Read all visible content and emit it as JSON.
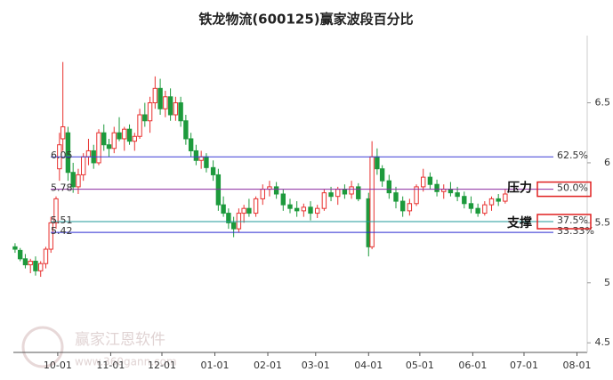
{
  "chart_data": {
    "type": "candlestick",
    "title": "铁龙物流(600125)赢家波段百分比",
    "x": [
      5,
      8,
      11,
      14,
      17,
      20,
      23,
      26,
      29,
      31,
      33,
      36,
      39,
      42,
      45,
      48,
      51,
      54,
      57,
      60,
      63,
      66,
      69,
      72,
      75,
      78,
      81,
      84,
      87,
      90,
      93,
      96,
      99,
      102,
      105,
      108,
      111,
      114,
      117,
      121,
      124,
      127,
      130,
      133,
      136,
      139,
      142,
      146,
      150,
      154,
      158,
      162,
      166,
      170,
      174,
      178,
      182,
      186,
      190,
      194,
      198,
      202,
      206,
      212,
      214,
      217,
      220,
      224,
      228,
      232,
      236,
      240,
      244,
      248,
      252,
      256,
      260,
      264,
      268,
      272,
      276,
      280,
      284,
      288,
      292
    ],
    "open": [
      5.3,
      5.27,
      5.2,
      5.15,
      5.18,
      5.1,
      5.16,
      5.28,
      5.5,
      5.95,
      6.2,
      6.25,
      5.92,
      5.8,
      5.9,
      6.05,
      6.1,
      6.0,
      6.25,
      6.15,
      6.12,
      6.25,
      6.2,
      6.28,
      6.18,
      6.22,
      6.4,
      6.35,
      6.5,
      6.62,
      6.45,
      6.55,
      6.4,
      6.5,
      6.35,
      6.2,
      6.1,
      6.02,
      6.05,
      5.96,
      5.9,
      5.65,
      5.58,
      5.5,
      5.45,
      5.58,
      5.62,
      5.58,
      5.7,
      5.78,
      5.8,
      5.74,
      5.65,
      5.62,
      5.6,
      5.63,
      5.58,
      5.62,
      5.75,
      5.72,
      5.78,
      5.74,
      5.8,
      5.7,
      5.3,
      6.05,
      5.95,
      5.85,
      5.75,
      5.68,
      5.6,
      5.66,
      5.8,
      5.88,
      5.82,
      5.76,
      5.78,
      5.75,
      5.72,
      5.66,
      5.62,
      5.58,
      5.65,
      5.7,
      5.68
    ],
    "high": [
      5.33,
      5.29,
      5.24,
      5.2,
      5.22,
      5.18,
      5.3,
      5.55,
      5.72,
      6.25,
      6.84,
      6.3,
      6.0,
      5.95,
      6.08,
      6.2,
      6.15,
      6.28,
      6.32,
      6.2,
      6.3,
      6.38,
      6.3,
      6.32,
      6.25,
      6.45,
      6.5,
      6.55,
      6.72,
      6.7,
      6.6,
      6.62,
      6.55,
      6.55,
      6.4,
      6.25,
      6.15,
      6.1,
      6.08,
      6.02,
      5.95,
      5.72,
      5.62,
      5.55,
      5.62,
      5.65,
      5.7,
      5.72,
      5.82,
      5.85,
      5.84,
      5.78,
      5.7,
      5.68,
      5.66,
      5.68,
      5.65,
      5.78,
      5.8,
      5.8,
      5.82,
      5.85,
      5.83,
      5.75,
      6.18,
      6.12,
      5.98,
      5.9,
      5.8,
      5.72,
      5.7,
      5.82,
      5.95,
      5.92,
      5.86,
      5.82,
      5.84,
      5.8,
      5.76,
      5.72,
      5.66,
      5.68,
      5.72,
      5.74,
      5.78
    ],
    "low": [
      5.25,
      5.18,
      5.12,
      5.08,
      5.06,
      5.05,
      5.12,
      5.25,
      5.45,
      5.85,
      6.1,
      5.85,
      5.75,
      5.74,
      5.85,
      5.98,
      5.95,
      5.98,
      6.1,
      6.05,
      6.08,
      6.18,
      6.1,
      6.15,
      6.1,
      6.2,
      6.3,
      6.25,
      6.45,
      6.4,
      6.38,
      6.35,
      6.35,
      6.3,
      6.15,
      6.05,
      5.98,
      5.95,
      5.92,
      5.85,
      5.6,
      5.55,
      5.45,
      5.38,
      5.42,
      5.5,
      5.55,
      5.55,
      5.65,
      5.72,
      5.7,
      5.6,
      5.58,
      5.55,
      5.55,
      5.52,
      5.54,
      5.6,
      5.68,
      5.65,
      5.7,
      5.7,
      5.68,
      5.22,
      5.28,
      5.9,
      5.8,
      5.7,
      5.62,
      5.55,
      5.56,
      5.64,
      5.76,
      5.78,
      5.72,
      5.7,
      5.72,
      5.68,
      5.62,
      5.58,
      5.55,
      5.56,
      5.6,
      5.64,
      5.66
    ],
    "close": [
      5.28,
      5.2,
      5.15,
      5.18,
      5.1,
      5.16,
      5.28,
      5.5,
      5.7,
      6.15,
      6.3,
      5.92,
      5.8,
      5.9,
      6.05,
      6.1,
      6.0,
      6.25,
      6.15,
      6.12,
      6.25,
      6.2,
      6.28,
      6.18,
      6.22,
      6.4,
      6.35,
      6.5,
      6.62,
      6.45,
      6.55,
      6.4,
      6.5,
      6.35,
      6.2,
      6.1,
      6.02,
      6.05,
      5.96,
      5.9,
      5.65,
      5.58,
      5.5,
      5.45,
      5.58,
      5.62,
      5.58,
      5.7,
      5.78,
      5.8,
      5.74,
      5.65,
      5.62,
      5.6,
      5.63,
      5.58,
      5.62,
      5.75,
      5.72,
      5.78,
      5.74,
      5.8,
      5.7,
      5.3,
      6.05,
      5.95,
      5.85,
      5.75,
      5.68,
      5.6,
      5.66,
      5.8,
      5.88,
      5.82,
      5.76,
      5.78,
      5.75,
      5.72,
      5.66,
      5.62,
      5.58,
      5.65,
      5.7,
      5.68,
      5.74
    ],
    "up_color": "#e8312f",
    "down_color": "#1d9a3c",
    "xlim": [
      4,
      340
    ],
    "xticks": [
      {
        "value": 30,
        "label": "10-01"
      },
      {
        "value": 61,
        "label": "11-01"
      },
      {
        "value": 91,
        "label": "12-01"
      },
      {
        "value": 122,
        "label": "01-01"
      },
      {
        "value": 153,
        "label": "02-01"
      },
      {
        "value": 181,
        "label": "03-01"
      },
      {
        "value": 212,
        "label": "04-01"
      },
      {
        "value": 242,
        "label": "05-01"
      },
      {
        "value": 273,
        "label": "06-01"
      },
      {
        "value": 303,
        "label": "07-01"
      },
      {
        "value": 334,
        "label": "08-01"
      }
    ],
    "ylim": [
      4.42,
      7.06
    ],
    "yticks": [
      4.5,
      5,
      5.5,
      6,
      6.5
    ],
    "levels": [
      {
        "value": 6.05,
        "label": "62.5%",
        "color": "#3a3ad6"
      },
      {
        "value": 5.78,
        "label": "50.0%",
        "color": "#8a2aa0"
      },
      {
        "value": 5.51,
        "label": "37.5%",
        "color": "#1f9a9a"
      },
      {
        "value": 5.42,
        "label": "33.33%",
        "color": "#2a2ad0"
      }
    ],
    "annotations": {
      "pressure": "压力",
      "support": "支撑"
    },
    "watermark": {
      "name": "赢家江恩软件",
      "url": "www.360gann.com"
    }
  }
}
